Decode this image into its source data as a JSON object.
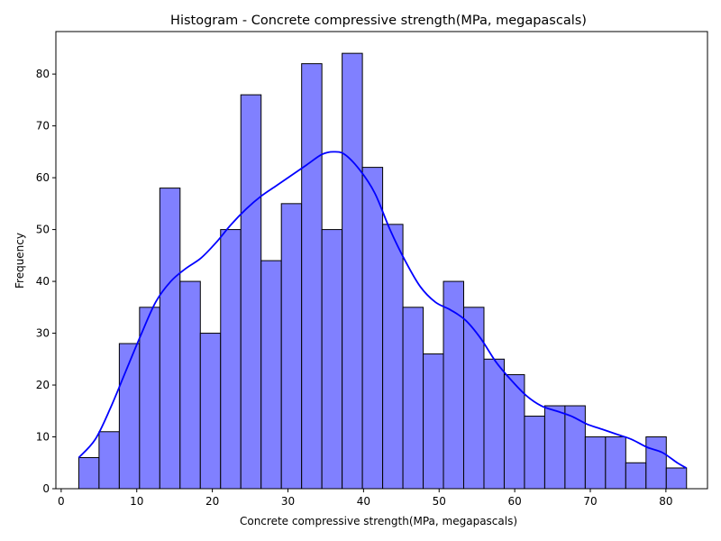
{
  "chart_data": {
    "type": "bar",
    "title": "Histogram - Concrete compressive strength(MPa, megapascals)",
    "xlabel": "Concrete compressive strength(MPa, megapascals)",
    "ylabel": "Frequency",
    "xlim": [
      -0.7,
      85.5
    ],
    "ylim": [
      0,
      88.2
    ],
    "x_ticks": [
      0,
      10,
      20,
      30,
      40,
      50,
      60,
      70,
      80
    ],
    "y_ticks": [
      0,
      10,
      20,
      30,
      40,
      50,
      60,
      70,
      80
    ],
    "grid": false,
    "legend": "none",
    "bin_start": 2.33,
    "bin_width": 2.68,
    "values": [
      6,
      11,
      28,
      35,
      58,
      40,
      30,
      50,
      76,
      44,
      55,
      82,
      50,
      84,
      62,
      51,
      35,
      26,
      40,
      35,
      25,
      22,
      14,
      16,
      16,
      10,
      10,
      5,
      10,
      4
    ],
    "kde": {
      "x": [
        2.33,
        4.5,
        6.5,
        8.5,
        10.5,
        12.5,
        14.5,
        16.5,
        18.5,
        20.5,
        22.5,
        24.5,
        26.5,
        28.5,
        30.5,
        32.5,
        34.5,
        36.0,
        37.5,
        39.5,
        41.5,
        43.5,
        45.5,
        47.5,
        49.5,
        51.5,
        53.5,
        55.5,
        57.5,
        59.5,
        61.5,
        63.5,
        65.5,
        67.5,
        69.5,
        71.5,
        73.5,
        75.5,
        77.5,
        79.5,
        81.5,
        82.7
      ],
      "y": [
        6,
        9.5,
        15.5,
        22.5,
        29.5,
        36,
        40,
        42.5,
        44.5,
        47.5,
        51,
        54,
        56.5,
        58.5,
        60.5,
        62.5,
        64.5,
        65,
        64.5,
        61.5,
        57,
        50,
        44,
        39,
        36,
        34.5,
        32.5,
        29,
        24.5,
        21,
        18,
        16,
        15,
        14,
        12.5,
        11.5,
        10.5,
        9.5,
        8,
        7,
        5,
        4
      ]
    },
    "colors": {
      "bar_fill": "#8080ff",
      "bar_edge": "#000000",
      "kde_line": "#0000ff"
    }
  }
}
